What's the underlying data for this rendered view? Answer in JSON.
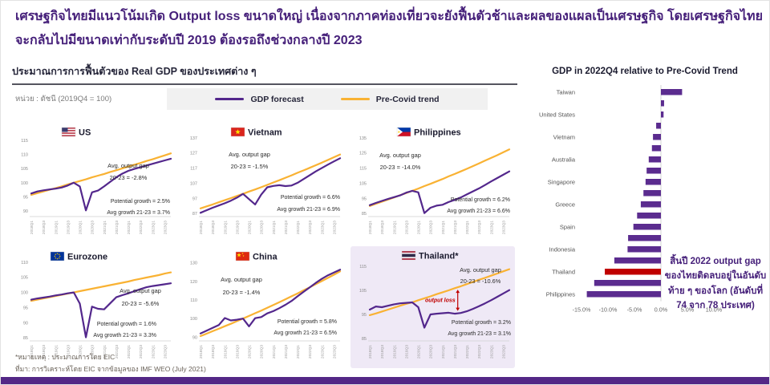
{
  "title": "เศรษฐกิจไทยมีแนวโน้มเกิด Output loss ขนาดใหญ่ เนื่องจากภาคท่องเที่ยวจะยังฟื้นตัวช้าและผลของแผลเป็นเศรษฐกิจ โดยเศรษฐกิจไทยจะกลับไปมีขนาดเท่ากับระดับปี 2019 ต้องรอถึงช่วงกลางปี 2023",
  "left_panel": {
    "heading": "ประมาณการการฟื้นตัวของ Real GDP ของประเทศต่าง ๆ",
    "unit_label": "หน่วย : ดัชนี (2019Q4 = 100)"
  },
  "legend": {
    "gdp_forecast": "GDP forecast",
    "pre_covid": "Pre-Covid trend"
  },
  "footnotes": {
    "note": "*หมายเหตุ : ประมาณการโดย EIC",
    "source": "ที่มา: การวิเคราะห์โดย EIC จากข้อมูลของ IMF WEO (July 2021)"
  },
  "colors": {
    "brand_purple": "#46207a",
    "forecast_line": "#53278c",
    "trend_line": "#f9b233",
    "bar_fill": "#5b2c8f",
    "highlight_red": "#c00000",
    "panel_highlight_bg": "#efe9f6"
  },
  "chart_data": [
    {
      "type": "line",
      "country": "US",
      "flag": "us",
      "highlighted": false,
      "x": [
        "2018Q1",
        "2018Q2",
        "2018Q3",
        "2018Q4",
        "2019Q1",
        "2019Q2",
        "2019Q3",
        "2019Q4",
        "2020Q1",
        "2020Q2",
        "2020Q3",
        "2020Q4",
        "2021Q1",
        "2021Q2",
        "2021Q3",
        "2021Q4",
        "2022Q1",
        "2022Q2",
        "2022Q3",
        "2022Q4",
        "2023Q1",
        "2023Q2",
        "2023Q3",
        "2023Q4"
      ],
      "series": [
        {
          "name": "GDP forecast",
          "values": [
            96.2,
            96.9,
            97.3,
            97.6,
            97.9,
            98.3,
            99.0,
            100.0,
            98.7,
            90.2,
            96.6,
            97.2,
            98.7,
            100.3,
            101.9,
            103.2,
            104.2,
            104.9,
            105.5,
            106.1,
            106.7,
            107.3,
            107.9,
            108.5
          ]
        },
        {
          "name": "Pre-Covid trend",
          "values": [
            95.7,
            96.3,
            96.9,
            97.5,
            98.1,
            98.7,
            99.4,
            100.0,
            100.6,
            101.2,
            101.9,
            102.5,
            103.1,
            103.8,
            104.4,
            105.1,
            105.7,
            106.4,
            107.0,
            107.7,
            108.3,
            109.0,
            109.7,
            110.4
          ]
        }
      ],
      "y_ticks": [
        115,
        110,
        105,
        100,
        95,
        90
      ],
      "ylim": [
        88,
        117
      ],
      "annotations": {
        "gap_label": "Avg. output gap",
        "gap_value": "20-23 = -2.8%",
        "potential": "Potential growth = 2.5%",
        "avg_growth": "Avg growth 21-23 = 3.7%"
      }
    },
    {
      "type": "line",
      "country": "Vietnam",
      "flag": "vn",
      "highlighted": false,
      "x": [
        "2018Q1",
        "2018Q2",
        "2018Q3",
        "2018Q4",
        "2019Q1",
        "2019Q2",
        "2019Q3",
        "2019Q4",
        "2020Q1",
        "2020Q2",
        "2020Q3",
        "2020Q4",
        "2021Q1",
        "2021Q2",
        "2021Q3",
        "2021Q4",
        "2022Q1",
        "2022Q2",
        "2022Q3",
        "2022Q4",
        "2023Q1",
        "2023Q2",
        "2023Q3",
        "2023Q4"
      ],
      "series": [
        {
          "name": "GDP forecast",
          "values": [
            87.5,
            89.2,
            90.8,
            92.3,
            93.8,
            95.5,
            97.5,
            100.0,
            96.5,
            93.0,
            99.5,
            104.3,
            105.2,
            105.7,
            105.1,
            105.5,
            107.3,
            109.8,
            112.3,
            114.8,
            117.1,
            119.3,
            121.4,
            123.5
          ]
        },
        {
          "name": "Pre-Covid trend",
          "values": [
            90.4,
            91.7,
            93.0,
            94.4,
            95.8,
            97.2,
            98.6,
            100.0,
            101.5,
            102.9,
            104.4,
            105.9,
            107.5,
            109.0,
            110.6,
            112.2,
            113.9,
            115.5,
            117.2,
            118.9,
            120.6,
            122.4,
            124.2,
            126.0
          ]
        }
      ],
      "y_ticks": [
        137,
        127,
        117,
        107,
        97,
        87
      ],
      "ylim": [
        85,
        139
      ],
      "annotations": {
        "gap_label": "Avg. output gap",
        "gap_value": "20-23 = -1.5%",
        "potential": "Potential growth = 6.6%",
        "avg_growth": "Avg growth 21-23 = 6.9%"
      }
    },
    {
      "type": "line",
      "country": "Philippines",
      "flag": "ph",
      "highlighted": false,
      "x": [
        "2018Q1",
        "2018Q2",
        "2018Q3",
        "2018Q4",
        "2019Q1",
        "2019Q2",
        "2019Q3",
        "2019Q4",
        "2020Q1",
        "2020Q2",
        "2020Q3",
        "2020Q4",
        "2021Q1",
        "2021Q2",
        "2021Q3",
        "2021Q4",
        "2022Q1",
        "2022Q2",
        "2022Q3",
        "2022Q4",
        "2023Q1",
        "2023Q2",
        "2023Q3",
        "2023Q4"
      ],
      "series": [
        {
          "name": "GDP forecast",
          "values": [
            90.5,
            92.0,
            93.3,
            94.6,
            95.8,
            97.0,
            98.8,
            100.0,
            99.0,
            85.3,
            88.8,
            90.2,
            90.8,
            92.6,
            94.0,
            95.6,
            97.6,
            99.6,
            101.6,
            103.8,
            106.2,
            108.4,
            110.6,
            112.8
          ]
        },
        {
          "name": "Pre-Covid trend",
          "values": [
            90.0,
            91.4,
            92.8,
            94.2,
            95.6,
            97.1,
            98.5,
            100.0,
            101.5,
            103.1,
            104.6,
            106.2,
            107.8,
            109.5,
            111.1,
            112.8,
            114.5,
            116.3,
            118.1,
            119.9,
            121.7,
            123.5,
            125.4,
            127.3
          ]
        }
      ],
      "y_ticks": [
        135,
        125,
        115,
        105,
        95,
        85
      ],
      "ylim": [
        83,
        137
      ],
      "annotations": {
        "gap_label": "Avg. output gap",
        "gap_value": "20-23 = -14.0%",
        "potential": "Potential growth = 6.2%",
        "avg_growth": "Avg growth 21-23 = 6.6%"
      }
    },
    {
      "type": "line",
      "country": "Eurozone",
      "flag": "eu",
      "highlighted": false,
      "x": [
        "2018Q1",
        "2018Q2",
        "2018Q3",
        "2018Q4",
        "2019Q1",
        "2019Q2",
        "2019Q3",
        "2019Q4",
        "2020Q1",
        "2020Q2",
        "2020Q3",
        "2020Q4",
        "2021Q1",
        "2021Q2",
        "2021Q3",
        "2021Q4",
        "2022Q1",
        "2022Q2",
        "2022Q3",
        "2022Q4",
        "2023Q1",
        "2023Q2",
        "2023Q3",
        "2023Q4"
      ],
      "series": [
        {
          "name": "GDP forecast",
          "values": [
            97.6,
            98.0,
            98.3,
            98.6,
            99.0,
            99.3,
            99.7,
            100.0,
            96.3,
            85.2,
            95.3,
            94.6,
            94.4,
            96.4,
            98.4,
            99.1,
            99.7,
            100.4,
            101.1,
            101.7,
            102.1,
            102.4,
            102.7,
            103.0
          ]
        },
        {
          "name": "Pre-Covid trend",
          "values": [
            97.2,
            97.6,
            98.0,
            98.4,
            98.8,
            99.2,
            99.6,
            100.0,
            100.4,
            100.8,
            101.2,
            101.6,
            102.0,
            102.4,
            102.8,
            103.2,
            103.6,
            104.1,
            104.5,
            104.9,
            105.3,
            105.7,
            106.2,
            106.6
          ]
        }
      ],
      "y_ticks": [
        110,
        105,
        100,
        95,
        90,
        85
      ],
      "ylim": [
        84,
        111
      ],
      "annotations": {
        "gap_label": "Avg. output gap",
        "gap_value": "20-23 = -5.6%",
        "potential": "Potential growth = 1.6%",
        "avg_growth": "Avg growth 21-23 = 3.3%"
      }
    },
    {
      "type": "line",
      "country": "China",
      "flag": "cn",
      "highlighted": false,
      "x": [
        "2018Q1",
        "2018Q2",
        "2018Q3",
        "2018Q4",
        "2019Q1",
        "2019Q2",
        "2019Q3",
        "2019Q4",
        "2020Q1",
        "2020Q2",
        "2020Q3",
        "2020Q4",
        "2021Q1",
        "2021Q2",
        "2021Q3",
        "2021Q4",
        "2022Q1",
        "2022Q2",
        "2022Q3",
        "2022Q4",
        "2023Q1",
        "2023Q2",
        "2023Q3",
        "2023Q4"
      ],
      "series": [
        {
          "name": "GDP forecast",
          "values": [
            92.0,
            93.5,
            95.0,
            96.5,
            100.3,
            99.0,
            99.4,
            100.0,
            95.8,
            100.2,
            100.8,
            102.8,
            104.0,
            105.6,
            107.4,
            109.5,
            112.0,
            114.4,
            116.8,
            119.2,
            121.4,
            123.3,
            124.8,
            126.3
          ]
        },
        {
          "name": "Pre-Covid trend",
          "values": [
            90.6,
            91.9,
            93.2,
            94.5,
            95.9,
            97.2,
            98.6,
            100.0,
            101.4,
            102.9,
            104.3,
            105.8,
            107.3,
            108.8,
            110.4,
            112.0,
            113.5,
            115.2,
            116.8,
            118.5,
            120.2,
            121.9,
            123.6,
            125.4
          ]
        }
      ],
      "y_ticks": [
        130,
        120,
        110,
        100,
        90
      ],
      "ylim": [
        88,
        132
      ],
      "annotations": {
        "gap_label": "Avg. output gap",
        "gap_value": "20-23 = -1.4%",
        "potential": "Potential growth = 5.8%",
        "avg_growth": "Avg growth 21-23 = 6.5%"
      }
    },
    {
      "type": "line",
      "country": "Thailand*",
      "flag": "th",
      "highlighted": true,
      "x": [
        "2018Q1",
        "2018Q2",
        "2018Q3",
        "2018Q4",
        "2019Q1",
        "2019Q2",
        "2019Q3",
        "2019Q4",
        "2020Q1",
        "2020Q2",
        "2020Q3",
        "2020Q4",
        "2021Q1",
        "2021Q2",
        "2021Q3",
        "2021Q4",
        "2022Q1",
        "2022Q2",
        "2022Q3",
        "2022Q4",
        "2023Q1",
        "2023Q2",
        "2023Q3",
        "2023Q4"
      ],
      "series": [
        {
          "name": "GDP forecast",
          "values": [
            97.0,
            98.3,
            98.0,
            98.6,
            99.2,
            99.6,
            99.8,
            100.0,
            98.0,
            89.5,
            95.0,
            95.3,
            95.5,
            95.7,
            95.3,
            95.6,
            96.3,
            97.3,
            98.4,
            99.6,
            100.9,
            102.3,
            103.7,
            105.1
          ]
        },
        {
          "name": "Pre-Covid trend",
          "values": [
            94.7,
            95.4,
            96.2,
            97.0,
            97.8,
            98.6,
            99.4,
            100.0,
            100.9,
            101.7,
            102.5,
            103.4,
            104.2,
            105.0,
            105.9,
            106.7,
            107.6,
            108.5,
            109.4,
            110.2,
            111.1,
            112.0,
            112.9,
            113.8
          ]
        }
      ],
      "y_ticks": [
        115,
        105,
        95,
        85
      ],
      "ylim": [
        84,
        118
      ],
      "annotations": {
        "gap_label": "Avg. output gap",
        "gap_value": "20-23 = -10.6%",
        "potential": "Potential growth = 3.2%",
        "avg_growth": "Avg growth 21-23 = 3.1%",
        "output_loss_label": "output loss"
      }
    },
    {
      "type": "bar",
      "title": "GDP in 2022Q4 relative to Pre-Covid Trend",
      "categories": [
        "Taiwan",
        "",
        "United States",
        "",
        "Vietnam",
        "",
        "Australia",
        "",
        "Singapore",
        "",
        "Greece",
        "",
        "Spain",
        "",
        "Indonesia",
        "",
        "Thailand",
        "",
        "Philippines"
      ],
      "values": [
        4.0,
        0.6,
        0.5,
        -0.9,
        -1.5,
        -1.7,
        -2.3,
        -2.7,
        -2.9,
        -3.3,
        -3.8,
        -4.5,
        -5.2,
        -6.2,
        -6.3,
        -8.8,
        -10.6,
        -12.6,
        -14.0
      ],
      "highlight_category": "Thailand",
      "x_ticks": [
        "-15.0%",
        "-10.0%",
        "-5.0%",
        "0.0%",
        "5.0%",
        "10.0%"
      ],
      "x_tick_values": [
        -15,
        -10,
        -5,
        0,
        5,
        10
      ],
      "xlim": [
        -16.5,
        11
      ],
      "annotation": "สิ้นปี 2022 output gap ของไทยติดลบอยู่ในอันดับท้าย ๆ ของโลก (อันดับที่ 74 จาก 78 ประเทศ)"
    }
  ]
}
